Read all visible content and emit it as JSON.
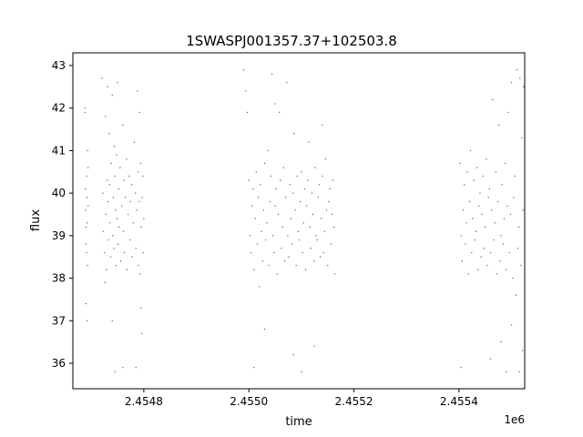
{
  "chart_data": {
    "type": "scatter",
    "title": "1SWASPJ001357.37+102503.8",
    "xlabel": "time",
    "ylabel": "flux",
    "x_offset_label": "1e6",
    "xlim": [
      2454665,
      2455525
    ],
    "ylim": [
      35.4,
      43.3
    ],
    "x_ticks": [
      2454800,
      2455000,
      2455200,
      2455400
    ],
    "x_tick_labels": [
      "2.4548",
      "2.4550",
      "2.4552",
      "2.4554"
    ],
    "y_ticks": [
      36,
      37,
      38,
      39,
      40,
      41,
      42,
      43
    ],
    "y_tick_labels": [
      "36",
      "37",
      "38",
      "39",
      "40",
      "41",
      "42",
      "43"
    ],
    "grid": false,
    "series": [
      {
        "color": "#1f77b4",
        "points": [
          [
            2454689,
            40.1
          ],
          [
            2454689,
            39.6
          ],
          [
            2454690,
            38.8
          ],
          [
            2454690,
            39.2
          ],
          [
            2454691,
            40.4
          ],
          [
            2454691,
            38.6
          ],
          [
            2454692,
            39.9
          ],
          [
            2454692,
            39.3
          ],
          [
            2454693,
            41.0
          ],
          [
            2454693,
            38.3
          ],
          [
            2454694,
            39.7
          ],
          [
            2454694,
            40.6
          ],
          [
            2454688,
            42.0
          ],
          [
            2454688,
            41.9
          ],
          [
            2454690,
            37.4
          ],
          [
            2454692,
            37.0
          ],
          [
            2454720,
            42.7
          ],
          [
            2454722,
            40.0
          ],
          [
            2454723,
            39.1
          ],
          [
            2454725,
            38.6
          ],
          [
            2454727,
            41.8
          ],
          [
            2454728,
            39.5
          ],
          [
            2454729,
            38.2
          ],
          [
            2454730,
            40.3
          ],
          [
            2454731,
            42.5
          ],
          [
            2454732,
            39.8
          ],
          [
            2454733,
            38.9
          ],
          [
            2454734,
            41.4
          ],
          [
            2454735,
            40.2
          ],
          [
            2454736,
            39.3
          ],
          [
            2454737,
            38.5
          ],
          [
            2454738,
            40.7
          ],
          [
            2454740,
            42.3
          ],
          [
            2454741,
            39.0
          ],
          [
            2454742,
            39.9
          ],
          [
            2454743,
            38.7
          ],
          [
            2454744,
            41.1
          ],
          [
            2454745,
            40.4
          ],
          [
            2454746,
            39.6
          ],
          [
            2454747,
            38.3
          ],
          [
            2454748,
            40.9
          ],
          [
            2454749,
            39.4
          ],
          [
            2454750,
            42.6
          ],
          [
            2454751,
            38.8
          ],
          [
            2454752,
            40.1
          ],
          [
            2454753,
            39.2
          ],
          [
            2454755,
            40.6
          ],
          [
            2454756,
            38.4
          ],
          [
            2454758,
            39.7
          ],
          [
            2454760,
            41.6
          ],
          [
            2454761,
            39.1
          ],
          [
            2454762,
            40.3
          ],
          [
            2454763,
            38.6
          ],
          [
            2454765,
            39.9
          ],
          [
            2454767,
            40.8
          ],
          [
            2454768,
            38.2
          ],
          [
            2454770,
            39.5
          ],
          [
            2454772,
            40.4
          ],
          [
            2454774,
            38.9
          ],
          [
            2454775,
            39.8
          ],
          [
            2454777,
            40.2
          ],
          [
            2454778,
            38.5
          ],
          [
            2454780,
            39.3
          ],
          [
            2454782,
            41.2
          ],
          [
            2454784,
            40.0
          ],
          [
            2454785,
            38.7
          ],
          [
            2454787,
            39.6
          ],
          [
            2454788,
            42.4
          ],
          [
            2454789,
            40.5
          ],
          [
            2454790,
            38.3
          ],
          [
            2454791,
            39.8
          ],
          [
            2454792,
            41.9
          ],
          [
            2454793,
            38.1
          ],
          [
            2454794,
            40.7
          ],
          [
            2454795,
            39.2
          ],
          [
            2454796,
            36.7
          ],
          [
            2454797,
            39.9
          ],
          [
            2454798,
            40.4
          ],
          [
            2454799,
            38.6
          ],
          [
            2454800,
            39.4
          ],
          [
            2454740,
            37.0
          ],
          [
            2454745,
            35.8
          ],
          [
            2454760,
            35.9
          ],
          [
            2454785,
            35.9
          ],
          [
            2454795,
            37.3
          ],
          [
            2454726,
            37.9
          ],
          [
            2454990,
            42.9
          ],
          [
            2454994,
            42.4
          ],
          [
            2454997,
            41.9
          ],
          [
            2455000,
            40.3
          ],
          [
            2455002,
            39.0
          ],
          [
            2455004,
            38.6
          ],
          [
            2455006,
            39.7
          ],
          [
            2455008,
            40.1
          ],
          [
            2455010,
            38.2
          ],
          [
            2455012,
            39.4
          ],
          [
            2455014,
            40.5
          ],
          [
            2455016,
            38.8
          ],
          [
            2455018,
            39.9
          ],
          [
            2455020,
            37.8
          ],
          [
            2455022,
            40.2
          ],
          [
            2455024,
            39.1
          ],
          [
            2455026,
            38.4
          ],
          [
            2455028,
            39.6
          ],
          [
            2455030,
            40.7
          ],
          [
            2455032,
            38.9
          ],
          [
            2455034,
            39.3
          ],
          [
            2455036,
            41.0
          ],
          [
            2455038,
            38.3
          ],
          [
            2455040,
            39.8
          ],
          [
            2455042,
            40.4
          ],
          [
            2455044,
            42.8
          ],
          [
            2455046,
            39.0
          ],
          [
            2455048,
            38.6
          ],
          [
            2455050,
            39.7
          ],
          [
            2455052,
            40.1
          ],
          [
            2455054,
            38.1
          ],
          [
            2455056,
            39.5
          ],
          [
            2455058,
            41.9
          ],
          [
            2455060,
            40.3
          ],
          [
            2455062,
            38.7
          ],
          [
            2455064,
            39.2
          ],
          [
            2455066,
            40.6
          ],
          [
            2455068,
            38.4
          ],
          [
            2455070,
            39.9
          ],
          [
            2455072,
            42.6
          ],
          [
            2455074,
            39.0
          ],
          [
            2455076,
            38.5
          ],
          [
            2455078,
            40.2
          ],
          [
            2455080,
            39.4
          ],
          [
            2455082,
            38.8
          ],
          [
            2455084,
            40.0
          ],
          [
            2455086,
            41.4
          ],
          [
            2455088,
            39.6
          ],
          [
            2455090,
            38.3
          ],
          [
            2455092,
            40.4
          ],
          [
            2455094,
            39.1
          ],
          [
            2455096,
            38.9
          ],
          [
            2455098,
            39.8
          ],
          [
            2455100,
            40.5
          ],
          [
            2455102,
            38.6
          ],
          [
            2455104,
            39.3
          ],
          [
            2455106,
            40.1
          ],
          [
            2455108,
            38.2
          ],
          [
            2455110,
            39.7
          ],
          [
            2455112,
            40.3
          ],
          [
            2455114,
            41.2
          ],
          [
            2455116,
            39.2
          ],
          [
            2455118,
            38.7
          ],
          [
            2455120,
            40.0
          ],
          [
            2455122,
            39.5
          ],
          [
            2455124,
            38.4
          ],
          [
            2455126,
            40.6
          ],
          [
            2455128,
            39.0
          ],
          [
            2455130,
            38.9
          ],
          [
            2455132,
            39.9
          ],
          [
            2455134,
            40.2
          ],
          [
            2455136,
            38.5
          ],
          [
            2455138,
            39.4
          ],
          [
            2455140,
            40.4
          ],
          [
            2455142,
            38.6
          ],
          [
            2455144,
            39.1
          ],
          [
            2455146,
            40.8
          ],
          [
            2455148,
            39.6
          ],
          [
            2455150,
            38.3
          ],
          [
            2455152,
            39.8
          ],
          [
            2455154,
            40.1
          ],
          [
            2455156,
            38.8
          ],
          [
            2455158,
            39.5
          ],
          [
            2455160,
            40.3
          ],
          [
            2455162,
            39.2
          ],
          [
            2455164,
            38.1
          ],
          [
            2455010,
            35.9
          ],
          [
            2455030,
            36.8
          ],
          [
            2455050,
            42.1
          ],
          [
            2455085,
            36.2
          ],
          [
            2455100,
            35.8
          ],
          [
            2455125,
            36.4
          ],
          [
            2455140,
            41.6
          ],
          [
            2455402,
            40.7
          ],
          [
            2455404,
            39.0
          ],
          [
            2455406,
            38.4
          ],
          [
            2455408,
            39.6
          ],
          [
            2455410,
            40.2
          ],
          [
            2455412,
            38.8
          ],
          [
            2455414,
            39.3
          ],
          [
            2455416,
            40.5
          ],
          [
            2455418,
            38.1
          ],
          [
            2455420,
            39.8
          ],
          [
            2455422,
            41.0
          ],
          [
            2455424,
            38.6
          ],
          [
            2455426,
            39.4
          ],
          [
            2455428,
            40.3
          ],
          [
            2455430,
            38.9
          ],
          [
            2455432,
            39.1
          ],
          [
            2455434,
            40.6
          ],
          [
            2455436,
            38.2
          ],
          [
            2455438,
            39.7
          ],
          [
            2455440,
            40.0
          ],
          [
            2455442,
            38.5
          ],
          [
            2455444,
            39.5
          ],
          [
            2455446,
            40.4
          ],
          [
            2455448,
            38.7
          ],
          [
            2455450,
            39.2
          ],
          [
            2455452,
            40.8
          ],
          [
            2455454,
            38.3
          ],
          [
            2455456,
            39.9
          ],
          [
            2455458,
            40.1
          ],
          [
            2455460,
            38.6
          ],
          [
            2455462,
            39.6
          ],
          [
            2455464,
            42.2
          ],
          [
            2455466,
            38.9
          ],
          [
            2455468,
            39.3
          ],
          [
            2455470,
            40.5
          ],
          [
            2455472,
            38.1
          ],
          [
            2455474,
            39.8
          ],
          [
            2455476,
            41.6
          ],
          [
            2455478,
            38.4
          ],
          [
            2455480,
            39.0
          ],
          [
            2455482,
            40.2
          ],
          [
            2455484,
            38.8
          ],
          [
            2455486,
            39.4
          ],
          [
            2455488,
            40.7
          ],
          [
            2455490,
            38.2
          ],
          [
            2455492,
            39.7
          ],
          [
            2455494,
            41.9
          ],
          [
            2455496,
            38.6
          ],
          [
            2455498,
            39.5
          ],
          [
            2455500,
            42.6
          ],
          [
            2455502,
            38.0
          ],
          [
            2455504,
            39.9
          ],
          [
            2455506,
            40.4
          ],
          [
            2455508,
            37.6
          ],
          [
            2455510,
            42.9
          ],
          [
            2455512,
            38.7
          ],
          [
            2455514,
            39.2
          ],
          [
            2455516,
            42.7
          ],
          [
            2455518,
            38.3
          ],
          [
            2455520,
            41.3
          ],
          [
            2455522,
            39.6
          ],
          [
            2455523,
            42.5
          ],
          [
            2455404,
            35.9
          ],
          [
            2455460,
            36.1
          ],
          [
            2455480,
            36.5
          ],
          [
            2455490,
            35.8
          ],
          [
            2455500,
            36.9
          ],
          [
            2455515,
            35.8
          ],
          [
            2455521,
            36.3
          ]
        ]
      }
    ]
  }
}
